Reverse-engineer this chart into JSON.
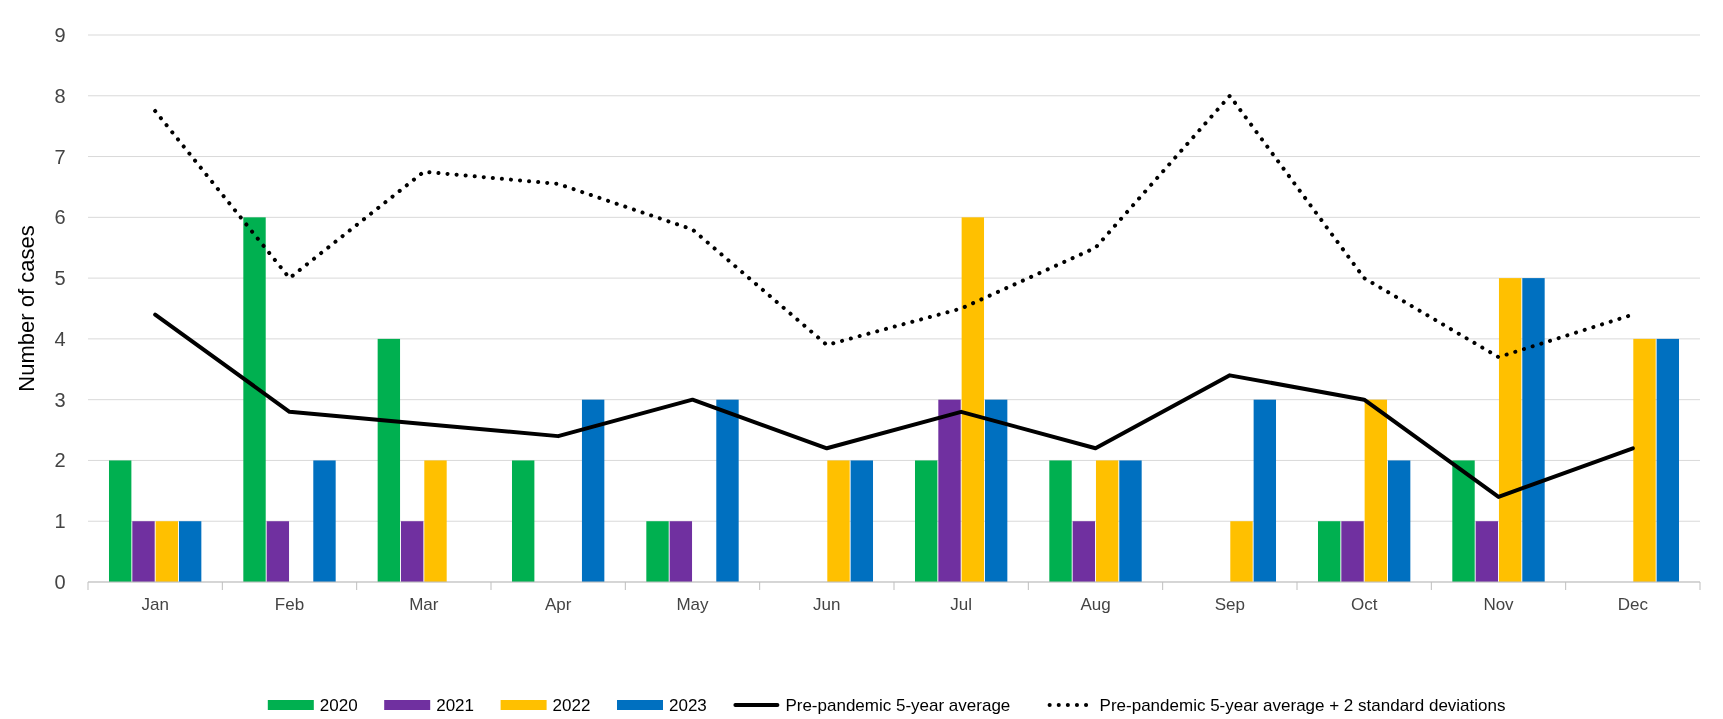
{
  "chart_data": {
    "type": "bar",
    "ylabel": "Number of cases",
    "categories": [
      "Jan",
      "Feb",
      "Mar",
      "Apr",
      "May",
      "Jun",
      "Jul",
      "Aug",
      "Sep",
      "Oct",
      "Nov",
      "Dec"
    ],
    "series": [
      {
        "name": "2020",
        "color": "#00b050",
        "values": [
          2,
          6,
          4,
          2,
          1,
          0,
          2,
          2,
          0,
          1,
          2,
          0
        ]
      },
      {
        "name": "2021",
        "color": "#7030a0",
        "values": [
          1,
          1,
          1,
          0,
          1,
          0,
          3,
          1,
          0,
          1,
          1,
          0
        ]
      },
      {
        "name": "2022",
        "color": "#ffc000",
        "values": [
          1,
          0,
          2,
          0,
          0,
          2,
          6,
          2,
          1,
          3,
          5,
          4
        ]
      },
      {
        "name": "2023",
        "color": "#0070c0",
        "values": [
          1,
          2,
          0,
          3,
          3,
          2,
          3,
          2,
          3,
          2,
          5,
          4
        ]
      },
      {
        "name": "Pre-pandemic 5-year average",
        "type": "line",
        "color": "#000000",
        "line_style": "solid",
        "values": [
          4.4,
          2.8,
          2.6,
          2.4,
          3.0,
          2.2,
          2.8,
          2.2,
          3.4,
          3.0,
          1.4,
          2.2
        ]
      },
      {
        "name": "Pre-pandemic 5-year average + 2 standard deviations",
        "type": "line",
        "color": "#000000",
        "line_style": "dotted",
        "values": [
          7.75,
          5.0,
          6.75,
          6.55,
          5.8,
          3.9,
          4.5,
          5.5,
          8.0,
          5.0,
          3.7,
          4.4
        ]
      }
    ],
    "ylim": [
      0,
      9
    ],
    "yticks": [
      0,
      1,
      2,
      3,
      4,
      5,
      6,
      7,
      8,
      9
    ],
    "grid": "y",
    "legend": "bottom",
    "marker": "none"
  }
}
